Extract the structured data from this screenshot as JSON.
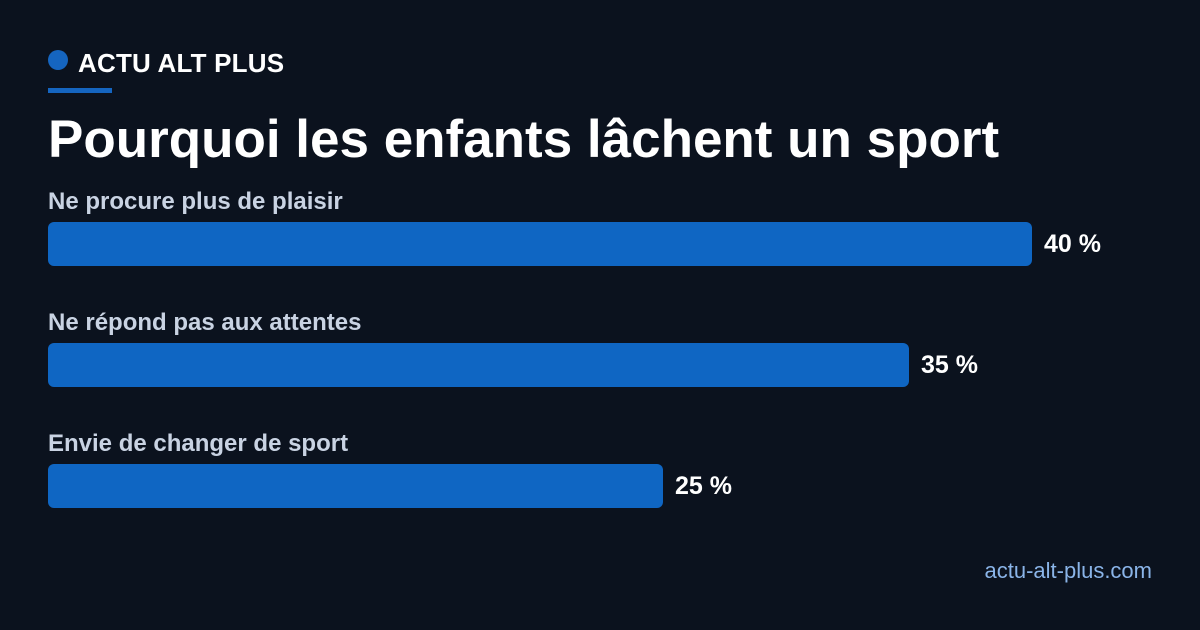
{
  "brand": {
    "name": "ACTU ALT PLUS",
    "site": "actu-alt-plus.com"
  },
  "colors": {
    "background": "#0b121e",
    "accent": "#1565c0",
    "bar": "#0f66c3",
    "label": "#c9d3e3",
    "site": "#8ab4e8"
  },
  "chart_data": {
    "type": "bar",
    "orientation": "horizontal",
    "title": "Pourquoi les enfants lâchent un sport",
    "xlabel": "",
    "ylabel": "",
    "unit": "%",
    "categories": [
      "Ne procure plus de plaisir",
      "Ne répond pas aux attentes",
      "Envie de changer de sport"
    ],
    "values": [
      40,
      35,
      25
    ],
    "value_labels": [
      "40 %",
      "35 %",
      "25 %"
    ],
    "xlim": [
      0,
      40
    ],
    "grid": false,
    "legend": "none"
  }
}
